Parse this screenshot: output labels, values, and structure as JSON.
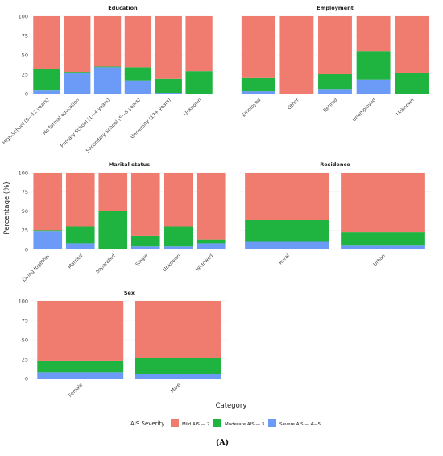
{
  "y_axis_label": "Percentage (%)",
  "x_axis_label": "Category",
  "legend": {
    "title": "AIS Severity",
    "items": [
      {
        "key": "mild",
        "label": "Mild AIS — 2",
        "color": "#F07B6F"
      },
      {
        "key": "moderate",
        "label": "Moderate AIS — 3",
        "color": "#1FB340"
      },
      {
        "key": "severe",
        "label": "Severe AIS — 4—5",
        "color": "#6B9BF7"
      }
    ]
  },
  "figure_caption": "(A)",
  "chart_data": [
    {
      "type": "bar",
      "stacked": true,
      "title": "Education",
      "yticks": [
        "0",
        "25",
        "50",
        "75",
        "100"
      ],
      "ylim": [
        0,
        100
      ],
      "categories": [
        "High-School (9—12 years)",
        "No formal education",
        "Primary School (1—4 years)",
        "Secondary School (5—9 years)",
        "University (13+ years)",
        "Unknown"
      ],
      "series": [
        {
          "name": "Mild AIS — 2",
          "values": [
            68,
            72,
            65,
            66,
            81,
            71
          ]
        },
        {
          "name": "Moderate AIS — 3",
          "values": [
            28,
            2,
            1,
            17,
            18,
            29
          ]
        },
        {
          "name": "Severe AIS — 4—5",
          "values": [
            4,
            26,
            34,
            17,
            1,
            0
          ]
        }
      ]
    },
    {
      "type": "bar",
      "stacked": true,
      "title": "Employment",
      "yticks": [],
      "ylim": [
        0,
        100
      ],
      "categories": [
        "Employed",
        "Other",
        "Retired",
        "Unemployed",
        "Unknown"
      ],
      "series": [
        {
          "name": "Mild AIS — 2",
          "values": [
            80,
            100,
            75,
            45,
            73
          ]
        },
        {
          "name": "Moderate AIS — 3",
          "values": [
            17,
            0,
            19,
            37,
            27
          ]
        },
        {
          "name": "Severe AIS — 4—5",
          "values": [
            3,
            0,
            6,
            18,
            0
          ]
        }
      ]
    },
    {
      "type": "bar",
      "stacked": true,
      "title": "Marital status",
      "yticks": [
        "0",
        "25",
        "50",
        "75",
        "100"
      ],
      "ylim": [
        0,
        100
      ],
      "categories": [
        "Living together",
        "Married",
        "Separated",
        "Single",
        "Unknown",
        "Widowed"
      ],
      "series": [
        {
          "name": "Mild AIS — 2",
          "values": [
            75,
            70,
            50,
            82,
            70,
            87
          ]
        },
        {
          "name": "Moderate AIS — 3",
          "values": [
            1,
            22,
            50,
            14,
            26,
            5
          ]
        },
        {
          "name": "Severe AIS — 4—5",
          "values": [
            24,
            8,
            0,
            4,
            4,
            8
          ]
        }
      ]
    },
    {
      "type": "bar",
      "stacked": true,
      "title": "Residence",
      "yticks": [],
      "ylim": [
        0,
        100
      ],
      "categories": [
        "Rural",
        "Urban"
      ],
      "series": [
        {
          "name": "Mild AIS — 2",
          "values": [
            62,
            78
          ]
        },
        {
          "name": "Moderate AIS — 3",
          "values": [
            28,
            17
          ]
        },
        {
          "name": "Severe AIS — 4—5",
          "values": [
            10,
            5
          ]
        }
      ]
    },
    {
      "type": "bar",
      "stacked": true,
      "title": "Sex",
      "yticks": [
        "0",
        "25",
        "50",
        "75",
        "100"
      ],
      "ylim": [
        0,
        100
      ],
      "categories": [
        "Female",
        "Male"
      ],
      "series": [
        {
          "name": "Mild AIS — 2",
          "values": [
            77,
            73
          ]
        },
        {
          "name": "Moderate AIS — 3",
          "values": [
            15,
            21
          ]
        },
        {
          "name": "Severe AIS — 4—5",
          "values": [
            8,
            6
          ]
        }
      ]
    }
  ]
}
